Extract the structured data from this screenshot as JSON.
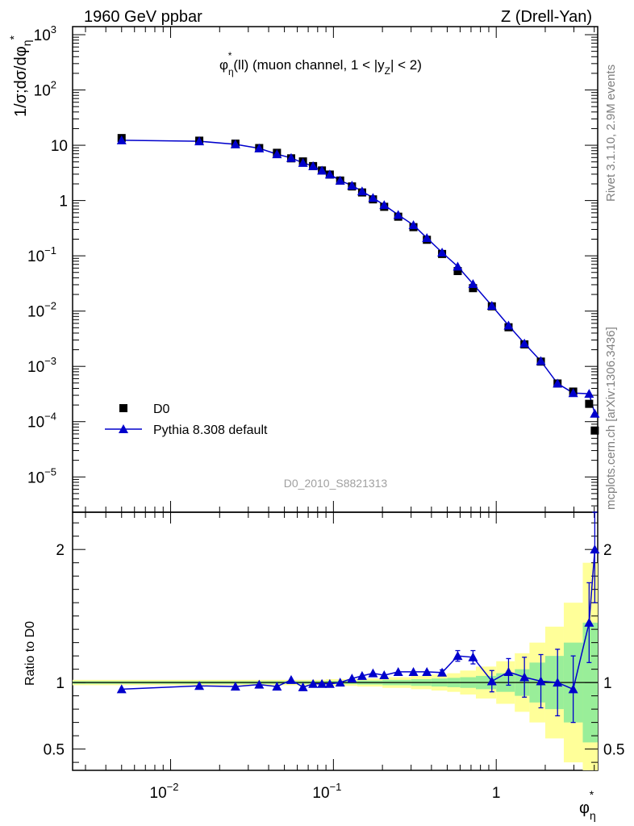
{
  "header": {
    "left": "1960 GeV ppbar",
    "right": "Z (Drell-Yan)"
  },
  "sidebar": {
    "top": "Rivet 3.1.10,  2.9M events",
    "bottom": "mcplots.cern.ch [arXiv:1306.3436]"
  },
  "chart_data": {
    "type": "scatter",
    "title": "φη*(ll) (muon channel, 1 < |yZ| < 2)",
    "title_parts": {
      "base": "φ",
      "sup": "*",
      "sub": "η",
      "rest1": "(ll) (muon channel, 1 < |y",
      "subz": "Z",
      "rest2": "| < 2)"
    },
    "watermark": "D0_2010_S8821313",
    "x_scale": "log",
    "y_scale": "log",
    "xlim": [
      0.0025,
      4.2
    ],
    "ylim": [
      2.3e-06,
      1400
    ],
    "ylabel": "1/σ;dσ/dφη*",
    "xlabel": "φη*",
    "legend_position": "bottom-left",
    "x": [
      0.005,
      0.015,
      0.025,
      0.035,
      0.045,
      0.055,
      0.065,
      0.075,
      0.085,
      0.095,
      0.11,
      0.13,
      0.15,
      0.175,
      0.205,
      0.25,
      0.31,
      0.375,
      0.465,
      0.58,
      0.72,
      0.94,
      1.19,
      1.49,
      1.88,
      2.38,
      2.97,
      3.72,
      4.03
    ],
    "series": [
      {
        "name": "D0",
        "marker": "square",
        "color": "#000000",
        "values": [
          13.5,
          12.1,
          10.7,
          8.9,
          7.3,
          5.8,
          5.1,
          4.2,
          3.5,
          2.95,
          2.3,
          1.8,
          1.4,
          1.05,
          0.77,
          0.51,
          0.33,
          0.195,
          0.108,
          0.053,
          0.026,
          0.0122,
          0.0051,
          0.0025,
          0.00122,
          0.00049,
          0.00035,
          0.00021,
          6.9e-05
        ]
      },
      {
        "name": "Pythia 8.308 default",
        "marker": "triangle",
        "color": "#0000cc",
        "values": [
          12.3,
          11.8,
          10.4,
          8.8,
          6.9,
          5.9,
          4.8,
          4.2,
          3.5,
          2.97,
          2.3,
          1.87,
          1.47,
          1.12,
          0.83,
          0.55,
          0.36,
          0.21,
          0.115,
          0.064,
          0.031,
          0.0125,
          0.0055,
          0.0026,
          0.00125,
          0.00049,
          0.00033,
          0.00032,
          0.00014
        ]
      }
    ],
    "ratio_panel": {
      "ylabel": "Ratio to D0",
      "ylim": [
        0.34,
        2.28
      ],
      "yticks": [
        0.5,
        1,
        2
      ],
      "ytick_labels": [
        "0.5",
        "1",
        "2"
      ],
      "values": [
        0.95,
        0.975,
        0.97,
        0.985,
        0.97,
        1.02,
        0.965,
        0.99,
        0.99,
        0.99,
        1.0,
        1.03,
        1.05,
        1.07,
        1.055,
        1.08,
        1.08,
        1.08,
        1.075,
        1.2,
        1.19,
        1.01,
        1.08,
        1.04,
        1.01,
        1.0,
        0.95,
        1.45,
        2.0
      ],
      "errors": [
        0,
        0,
        0,
        0,
        0,
        0,
        0,
        0,
        0,
        0,
        0,
        0,
        0,
        0,
        0,
        0,
        0,
        0,
        0.02,
        0.04,
        0.05,
        0.08,
        0.1,
        0.15,
        0.2,
        0.25,
        0.25,
        0.3,
        0.4
      ],
      "band_edges": [
        0.0025,
        0.035,
        0.09,
        0.14,
        0.2,
        0.3,
        0.4,
        0.5,
        0.6,
        0.75,
        1.0,
        1.3,
        1.6,
        2.0,
        2.6,
        3.4,
        4.2
      ],
      "band_green": [
        0.01,
        0.01,
        0.012,
        0.015,
        0.02,
        0.025,
        0.03,
        0.035,
        0.04,
        0.05,
        0.07,
        0.1,
        0.15,
        0.2,
        0.3,
        0.45
      ],
      "band_yellow": [
        0.02,
        0.02,
        0.025,
        0.03,
        0.04,
        0.05,
        0.06,
        0.07,
        0.09,
        0.12,
        0.16,
        0.22,
        0.3,
        0.42,
        0.6,
        0.9
      ]
    }
  }
}
